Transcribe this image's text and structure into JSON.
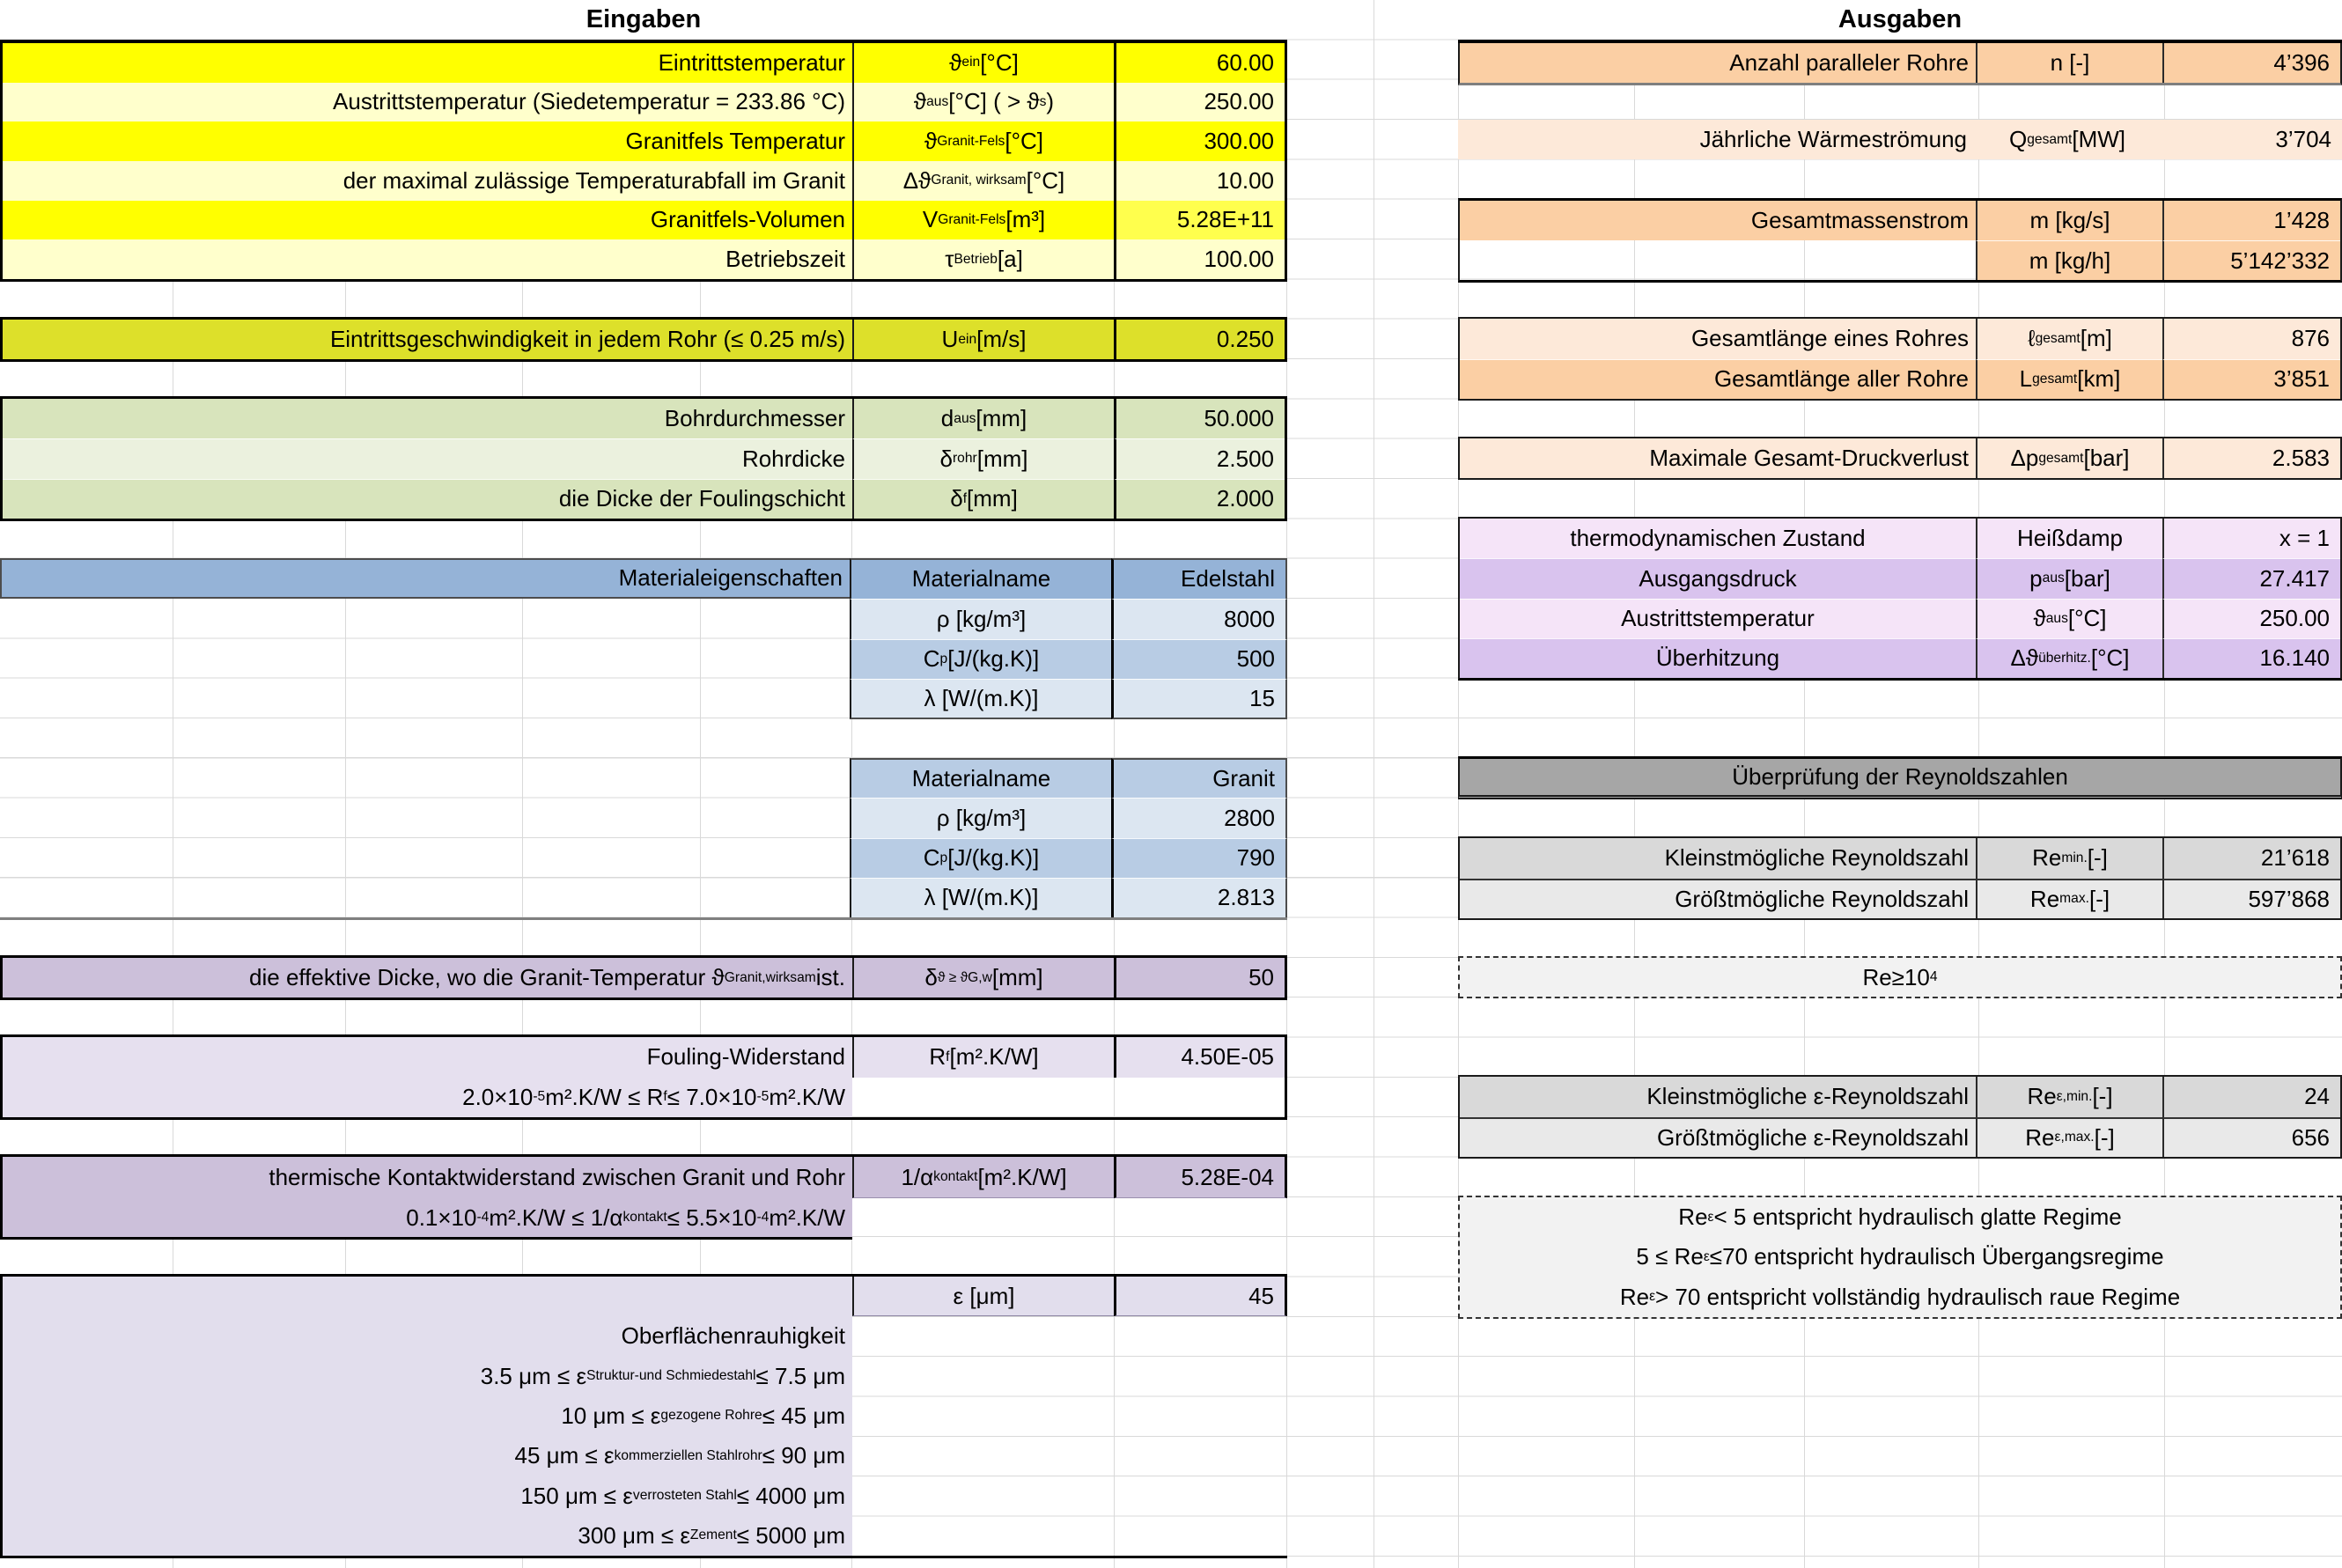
{
  "colors": {
    "bright_yellow": "#FFFF00",
    "pale_yellow": "#FFFFCC",
    "mid_yellow": "#FFFF4D",
    "chartreuse": "#DDE02A",
    "green": "#D8E4BC",
    "pale_green": "#EBF1DE",
    "blue": "#95B3D7",
    "mid_blue": "#B8CCE4",
    "pale_blue": "#DCE6F1",
    "purple": "#CCC0DA",
    "pale_purple": "#E6E0EF",
    "lavender": "#E2DEED",
    "peach": "#FBCFA4",
    "pale_peach": "#FDE9D9",
    "pink": "#F5E4F8",
    "violet": "#D9C3EE",
    "gray_header": "#A6A6A6",
    "gray": "#D9D9D9",
    "pale_gray": "#E9E9E9",
    "note_bg": "#F2F2F2",
    "grid": "#D9D9D9"
  },
  "left": {
    "title": "Eingaben",
    "temp_rows": [
      {
        "label": "Eintrittstemperatur",
        "symbol": [
          "ϑ",
          {
            "sub": "ein"
          },
          " [°C]"
        ],
        "value": "60.00"
      },
      {
        "label": "Austrittstemperatur (Siedetemperatur = 233.86 °C)",
        "symbol": [
          "ϑ",
          {
            "sub": "aus"
          },
          " [°C] ( > ϑ",
          {
            "sub": "s"
          },
          ")"
        ],
        "value": "250.00"
      },
      {
        "label": "Granitfels Temperatur",
        "symbol": [
          "ϑ",
          {
            "sub": "Granit-Fels"
          },
          " [°C]"
        ],
        "value": "300.00"
      },
      {
        "label": "der maximal zulässige Temperaturabfall im Granit",
        "symbol": [
          "Δϑ",
          {
            "sub": "Granit, wirksam"
          },
          " [°C]"
        ],
        "value": "10.00"
      },
      {
        "label": "Granitfels-Volumen",
        "symbol": [
          "V",
          {
            "sub": "Granit-Fels"
          },
          " [m³]"
        ],
        "value": "5.28E+11"
      },
      {
        "label": "Betriebszeit",
        "symbol": [
          "τ",
          {
            "sub": "Betrieb"
          },
          " [a]"
        ],
        "value": "100.00"
      }
    ],
    "speed_row": {
      "label": "Eintrittsgeschwindigkeit in jedem Rohr (≤ 0.25 m/s)",
      "symbol": [
        "U",
        {
          "sub": "ein"
        },
        " [m/s]"
      ],
      "value": "0.250"
    },
    "geometry_rows": [
      {
        "label": "Bohrdurchmesser",
        "symbol": [
          "d",
          {
            "sub": "aus"
          },
          " [mm]"
        ],
        "value": "50.000"
      },
      {
        "label": "Rohrdicke",
        "symbol": [
          "δ",
          {
            "sub": "rohr"
          },
          " [mm]"
        ],
        "value": "2.500"
      },
      {
        "label": "die Dicke der Foulingschicht",
        "symbol": [
          "δ",
          {
            "sub": "f"
          },
          " [mm]"
        ],
        "value": "2.000"
      }
    ],
    "material_steel": {
      "title": "Materialeigenschaften",
      "rows": [
        {
          "symbol": "Materialname",
          "value": "Edelstahl"
        },
        {
          "symbol": "ρ [kg/m³]",
          "value": "8000"
        },
        {
          "symbol": [
            "C",
            {
              "sub": "p"
            },
            " [J/(kg.K)]"
          ],
          "value": "500"
        },
        {
          "symbol": "λ [W/(m.K)]",
          "value": "15"
        }
      ]
    },
    "material_granite": {
      "rows": [
        {
          "symbol": "Materialname",
          "value": "Granit"
        },
        {
          "symbol": "ρ [kg/m³]",
          "value": "2800"
        },
        {
          "symbol": [
            "C",
            {
              "sub": "p"
            },
            " [J/(kg.K)]"
          ],
          "value": "790"
        },
        {
          "symbol": "λ [W/(m.K)]",
          "value": "2.813"
        }
      ]
    },
    "effective_row": {
      "label": [
        "die effektive Dicke, wo die Granit-Temperatur ϑ",
        {
          "sub": "Granit,wirksam"
        },
        " ist."
      ],
      "symbol": [
        "δ",
        {
          "sub": "ϑ ≥ ϑG,w"
        },
        " [mm]"
      ],
      "value": "50"
    },
    "fouling": {
      "label": "Fouling-Widerstand",
      "symbol": [
        "R",
        {
          "sub": "f"
        },
        " [m².K/W]"
      ],
      "value": "4.50E-05",
      "range": [
        "2.0×10",
        {
          "sup": "-5"
        },
        " m².K/W ≤ R",
        {
          "sub": "f"
        },
        " ≤ 7.0×10",
        {
          "sup": "-5"
        },
        " m².K/W"
      ]
    },
    "contact": {
      "label": "thermische Kontaktwiderstand zwischen Granit und Rohr",
      "symbol": [
        "1/α",
        {
          "sub": "kontakt"
        },
        " [m².K/W]"
      ],
      "value": "5.28E-04",
      "range": [
        "0.1×10",
        {
          "sup": "-4"
        },
        " m².K/W ≤ 1/α",
        {
          "sub": "kontakt"
        },
        " ≤ 5.5×10",
        {
          "sup": "-4"
        },
        " m².K/W"
      ]
    },
    "roughness": {
      "symbol": "ε [μm]",
      "value": "45",
      "title": "Oberflächenrauhigkeit",
      "ranges": [
        [
          "3.5 μm ≤ ε",
          {
            "sub": "Struktur-und Schmiedestahl"
          },
          " ≤ 7.5 μm"
        ],
        [
          "10 μm ≤ ε",
          {
            "sub": "gezogene Rohre"
          },
          " ≤ 45 μm"
        ],
        [
          "45 μm ≤ ε",
          {
            "sub": "kommerziellen Stahlrohr"
          },
          " ≤ 90 μm"
        ],
        [
          "150 μm ≤ ε",
          {
            "sub": "verrosteten Stahl"
          },
          " ≤ 4000 μm"
        ],
        [
          "300 μm ≤ ε",
          {
            "sub": "Zement"
          },
          " ≤ 5000 μm"
        ]
      ]
    }
  },
  "right": {
    "title": "Ausgaben",
    "tubes_row": {
      "label": "Anzahl paralleler Rohre",
      "symbol": "n [-]",
      "value": "4’396"
    },
    "heat_row": {
      "label": "Jährliche Wärmeströmung",
      "symbol": [
        "Q",
        {
          "sub": "gesamt"
        },
        " [MW]"
      ],
      "value": "3’704"
    },
    "mass_rows": [
      {
        "label": "Gesamtmassenstrom",
        "symbol": "m [kg/s]",
        "value": "1’428"
      },
      {
        "label": "",
        "symbol": "m [kg/h]",
        "value": "5’142’332"
      }
    ],
    "length_rows": [
      {
        "label": "Gesamtlänge eines Rohres",
        "symbol": [
          "ℓ",
          {
            "sub": "gesamt"
          },
          " [m]"
        ],
        "value": "876"
      },
      {
        "label": "Gesamtlänge aller Rohre",
        "symbol": [
          "L",
          {
            "sub": "gesamt"
          },
          " [km]"
        ],
        "value": "3’851"
      }
    ],
    "pressure_row": {
      "label": "Maximale Gesamt-Druckverlust",
      "symbol": [
        "Δp",
        {
          "sub": "gesamt"
        },
        " [bar]"
      ],
      "value": "2.583"
    },
    "state_rows": [
      {
        "label": "thermodynamischen Zustand",
        "symbol": "Heißdamp",
        "value": "x = 1"
      },
      {
        "label": "Ausgangsdruck",
        "symbol": [
          "p",
          {
            "sub": "aus"
          },
          " [bar]"
        ],
        "value": "27.417"
      },
      {
        "label": "Austrittstemperatur",
        "symbol": [
          "ϑ",
          {
            "sub": "aus"
          },
          " [°C]"
        ],
        "value": "250.00"
      },
      {
        "label": "Überhitzung",
        "symbol": [
          "Δϑ",
          {
            "sub": "überhitz."
          },
          " [°C]"
        ],
        "value": "16.140"
      }
    ],
    "reynolds": {
      "title": "Überprüfung der Reynoldszahlen",
      "rows": [
        {
          "label": "Kleinstmögliche Reynoldszahl",
          "symbol": [
            "Re",
            {
              "sub": "min."
            },
            " [-]"
          ],
          "value": "21’618"
        },
        {
          "label": "Größtmögliche Reynoldszahl",
          "symbol": [
            "Re",
            {
              "sub": "max."
            },
            " [-]"
          ],
          "value": "597’868"
        }
      ],
      "note": [
        "Re≥10",
        {
          "sup": "4"
        }
      ]
    },
    "eps_reynolds": {
      "rows": [
        {
          "label": "Kleinstmögliche ε-Reynoldszahl",
          "symbol": [
            "Re",
            {
              "sub": "ε,min."
            },
            " [-]"
          ],
          "value": "24"
        },
        {
          "label": "Größtmögliche ε-Reynoldszahl",
          "symbol": [
            "Re",
            {
              "sub": "ε,max."
            },
            " [-]"
          ],
          "value": "656"
        }
      ],
      "regime_lines": [
        [
          "Re",
          {
            "sub": "ε"
          },
          " < 5 entspricht hydraulisch glatte Regime"
        ],
        [
          "5 ≤ Re",
          {
            "sub": "ε"
          },
          " ≤70 entspricht hydraulisch Übergangsregime"
        ],
        [
          "Re",
          {
            "sub": "ε"
          },
          " > 70 entspricht vollständig hydraulisch raue Regime"
        ]
      ]
    }
  }
}
